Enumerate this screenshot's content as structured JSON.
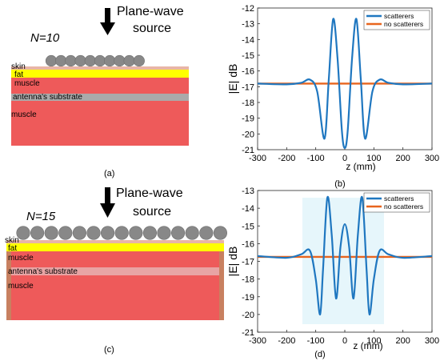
{
  "panel_a": {
    "n_label": "N=10",
    "source_label_1": "Plane-wave",
    "source_label_2": "source",
    "layers": [
      "skin",
      "fat",
      "muscle",
      "antenna's substrate",
      "muscle"
    ],
    "caption": "(a)"
  },
  "panel_c": {
    "n_label": "N=15",
    "source_label_1": "Plane-wave",
    "source_label_2": "source",
    "layers": [
      "skin",
      "fat",
      "muscle",
      "antenna's substrate",
      "muscle"
    ],
    "caption": "(c)"
  },
  "colors": {
    "skin": "#e8b5a7",
    "fat": "#ffff00",
    "muscle": "#ee5a5a",
    "substrate": "#aaaaaa",
    "scatterer": "#888888",
    "scatterers_line": "#1f77c0",
    "no_scatterers_line": "#e8651e"
  },
  "chart_data": [
    {
      "type": "line",
      "caption": "(b)",
      "xlabel": "z (mm)",
      "ylabel": "|E| dB",
      "xlim": [
        -300,
        300
      ],
      "ylim": [
        -21,
        -12
      ],
      "xticks": [
        "-300",
        "-200",
        "-100",
        "0",
        "100",
        "200",
        "300"
      ],
      "yticks": [
        "-12",
        "-13",
        "-14",
        "-15",
        "-16",
        "-17",
        "-18",
        "-19",
        "-20",
        "-21"
      ],
      "legend": "top-right",
      "x": [
        -300,
        -200,
        -150,
        -120,
        -95,
        -70,
        -55,
        -40,
        -25,
        -10,
        0,
        10,
        25,
        40,
        55,
        70,
        95,
        120,
        150,
        200,
        300
      ],
      "series": [
        {
          "name": "scatterers",
          "values": [
            -16.8,
            -16.85,
            -16.75,
            -16.55,
            -17.3,
            -20.3,
            -16.5,
            -12.7,
            -15.2,
            -19.8,
            -20.9,
            -19.8,
            -15.2,
            -12.7,
            -16.5,
            -20.3,
            -17.3,
            -16.55,
            -16.75,
            -16.85,
            -16.8
          ]
        },
        {
          "name": "no scatterers",
          "values": [
            -16.8,
            -16.8,
            -16.8,
            -16.8,
            -16.8,
            -16.8,
            -16.8,
            -16.8,
            -16.8,
            -16.8,
            -16.8,
            -16.8,
            -16.8,
            -16.8,
            -16.8,
            -16.8,
            -16.8,
            -16.8,
            -16.8,
            -16.8,
            -16.8
          ]
        }
      ]
    },
    {
      "type": "line",
      "caption": "(d)",
      "xlabel": "z (mm)",
      "ylabel": "|E| dB",
      "xlim": [
        -300,
        300
      ],
      "ylim": [
        -21,
        -13
      ],
      "xticks": [
        "-300",
        "-200",
        "-100",
        "0",
        "100",
        "200",
        "300"
      ],
      "yticks": [
        "-13",
        "-14",
        "-15",
        "-16",
        "-17",
        "-18",
        "-19",
        "-20",
        "-21"
      ],
      "legend": "top-right",
      "x": [
        -300,
        -200,
        -150,
        -120,
        -100,
        -85,
        -75,
        -60,
        -45,
        -30,
        -15,
        0,
        15,
        30,
        45,
        60,
        75,
        85,
        100,
        120,
        150,
        200,
        300
      ],
      "series": [
        {
          "name": "scatterers",
          "values": [
            -16.7,
            -16.8,
            -16.6,
            -16.4,
            -18.0,
            -20.0,
            -17.5,
            -13.4,
            -15.5,
            -19.1,
            -16.2,
            -14.9,
            -16.2,
            -19.1,
            -15.5,
            -13.4,
            -17.5,
            -20.0,
            -18.0,
            -16.4,
            -16.6,
            -16.8,
            -16.7
          ]
        },
        {
          "name": "no scatterers",
          "values": [
            -16.75,
            -16.75,
            -16.75,
            -16.75,
            -16.75,
            -16.75,
            -16.75,
            -16.75,
            -16.75,
            -16.75,
            -16.75,
            -16.75,
            -16.75,
            -16.75,
            -16.75,
            -16.75,
            -16.75,
            -16.75,
            -16.75,
            -16.75,
            -16.75,
            -16.75,
            -16.75
          ]
        }
      ]
    }
  ]
}
